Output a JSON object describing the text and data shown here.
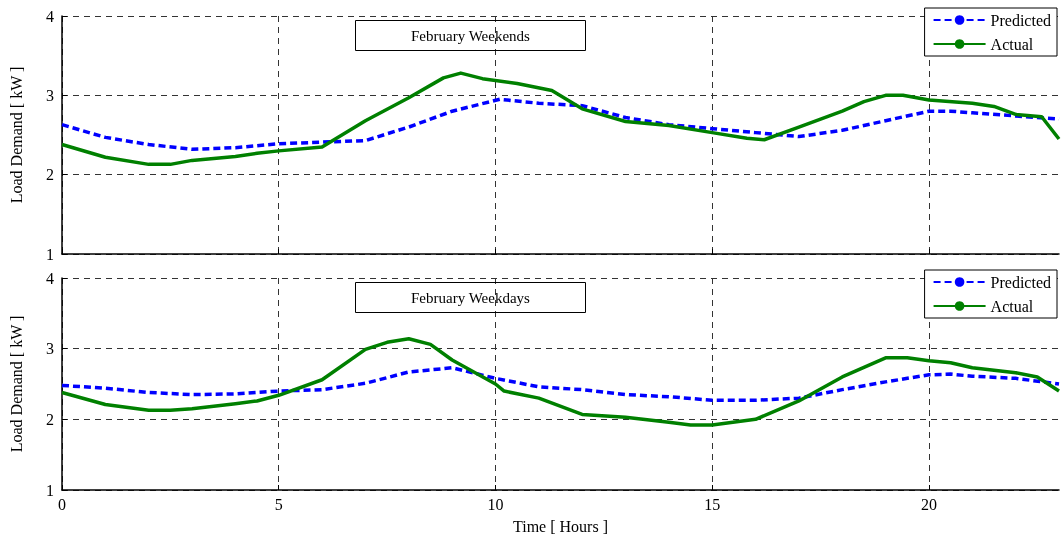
{
  "chart_data": [
    {
      "type": "line",
      "title": "February Weekends",
      "ylabel": "Load Demand [ kW ]",
      "xlim": [
        0,
        23
      ],
      "xticks": [
        0,
        5,
        10,
        15,
        20
      ],
      "ylim": [
        1,
        4
      ],
      "yticks": [
        1,
        2,
        3,
        4
      ],
      "grid": true,
      "legend": "top right",
      "tick_labels": "y",
      "series": [
        {
          "name": "Predicted",
          "color": "#0000ff",
          "line_style": "dashed",
          "x": [
            0,
            1,
            2,
            3,
            4,
            5,
            6,
            7,
            8,
            9,
            10.1,
            11,
            12,
            13,
            14,
            15,
            16,
            17,
            18,
            19,
            20,
            20.5,
            21,
            22,
            23
          ],
          "values": [
            2.63,
            2.47,
            2.38,
            2.32,
            2.34,
            2.39,
            2.41,
            2.43,
            2.6,
            2.8,
            2.95,
            2.9,
            2.87,
            2.72,
            2.63,
            2.58,
            2.53,
            2.48,
            2.56,
            2.68,
            2.8,
            2.8,
            2.78,
            2.74,
            2.7
          ]
        },
        {
          "name": "Actual",
          "color": "#008000",
          "line_style": "solid",
          "x": [
            0,
            1,
            2,
            2.5,
            3,
            4,
            4.5,
            5,
            6,
            7,
            8,
            8.8,
            9.2,
            9.7,
            10.5,
            11.3,
            12,
            13,
            14,
            15,
            15.8,
            16.2,
            17,
            17.5,
            18,
            18.5,
            19,
            19.4,
            20,
            21,
            21.5,
            22,
            22.6,
            23
          ],
          "values": [
            2.38,
            2.22,
            2.13,
            2.13,
            2.18,
            2.23,
            2.27,
            2.3,
            2.35,
            2.68,
            2.97,
            3.22,
            3.28,
            3.21,
            3.15,
            3.06,
            2.83,
            2.67,
            2.62,
            2.53,
            2.46,
            2.44,
            2.6,
            2.7,
            2.8,
            2.92,
            3.0,
            3.0,
            2.94,
            2.9,
            2.86,
            2.76,
            2.73,
            2.45
          ]
        }
      ]
    },
    {
      "type": "line",
      "title": "February Weekdays",
      "xlabel": "Time [ Hours ]",
      "ylabel": "Load Demand [ kW ]",
      "xlim": [
        0,
        23
      ],
      "xticks": [
        0,
        5,
        10,
        15,
        20
      ],
      "ylim": [
        1,
        4
      ],
      "yticks": [
        1,
        2,
        3,
        4
      ],
      "grid": true,
      "legend": "top right",
      "series": [
        {
          "name": "Predicted",
          "color": "#0000ff",
          "line_style": "dashed",
          "x": [
            0,
            1,
            2,
            3,
            4,
            5,
            6,
            7,
            8,
            9,
            10,
            11,
            12,
            13,
            14,
            15,
            16,
            17,
            18,
            19,
            20,
            20.5,
            21,
            22,
            23
          ],
          "values": [
            2.48,
            2.44,
            2.38,
            2.35,
            2.36,
            2.4,
            2.42,
            2.51,
            2.67,
            2.73,
            2.58,
            2.46,
            2.42,
            2.35,
            2.32,
            2.27,
            2.27,
            2.3,
            2.42,
            2.53,
            2.63,
            2.64,
            2.61,
            2.58,
            2.5
          ]
        },
        {
          "name": "Actual",
          "color": "#008000",
          "line_style": "solid",
          "x": [
            0,
            1,
            2,
            2.5,
            3,
            4,
            4.5,
            5,
            6,
            7,
            7.5,
            8,
            8.5,
            9,
            10,
            10.2,
            11,
            12,
            13,
            14,
            14.5,
            15,
            16,
            17,
            18,
            19,
            19.5,
            20,
            20.5,
            21,
            22,
            22.5,
            23
          ],
          "values": [
            2.38,
            2.21,
            2.13,
            2.13,
            2.15,
            2.22,
            2.26,
            2.34,
            2.56,
            2.99,
            3.09,
            3.14,
            3.06,
            2.84,
            2.5,
            2.4,
            2.3,
            2.07,
            2.03,
            1.96,
            1.92,
            1.92,
            2.0,
            2.26,
            2.6,
            2.87,
            2.87,
            2.83,
            2.8,
            2.73,
            2.66,
            2.6,
            2.4
          ]
        }
      ]
    }
  ]
}
